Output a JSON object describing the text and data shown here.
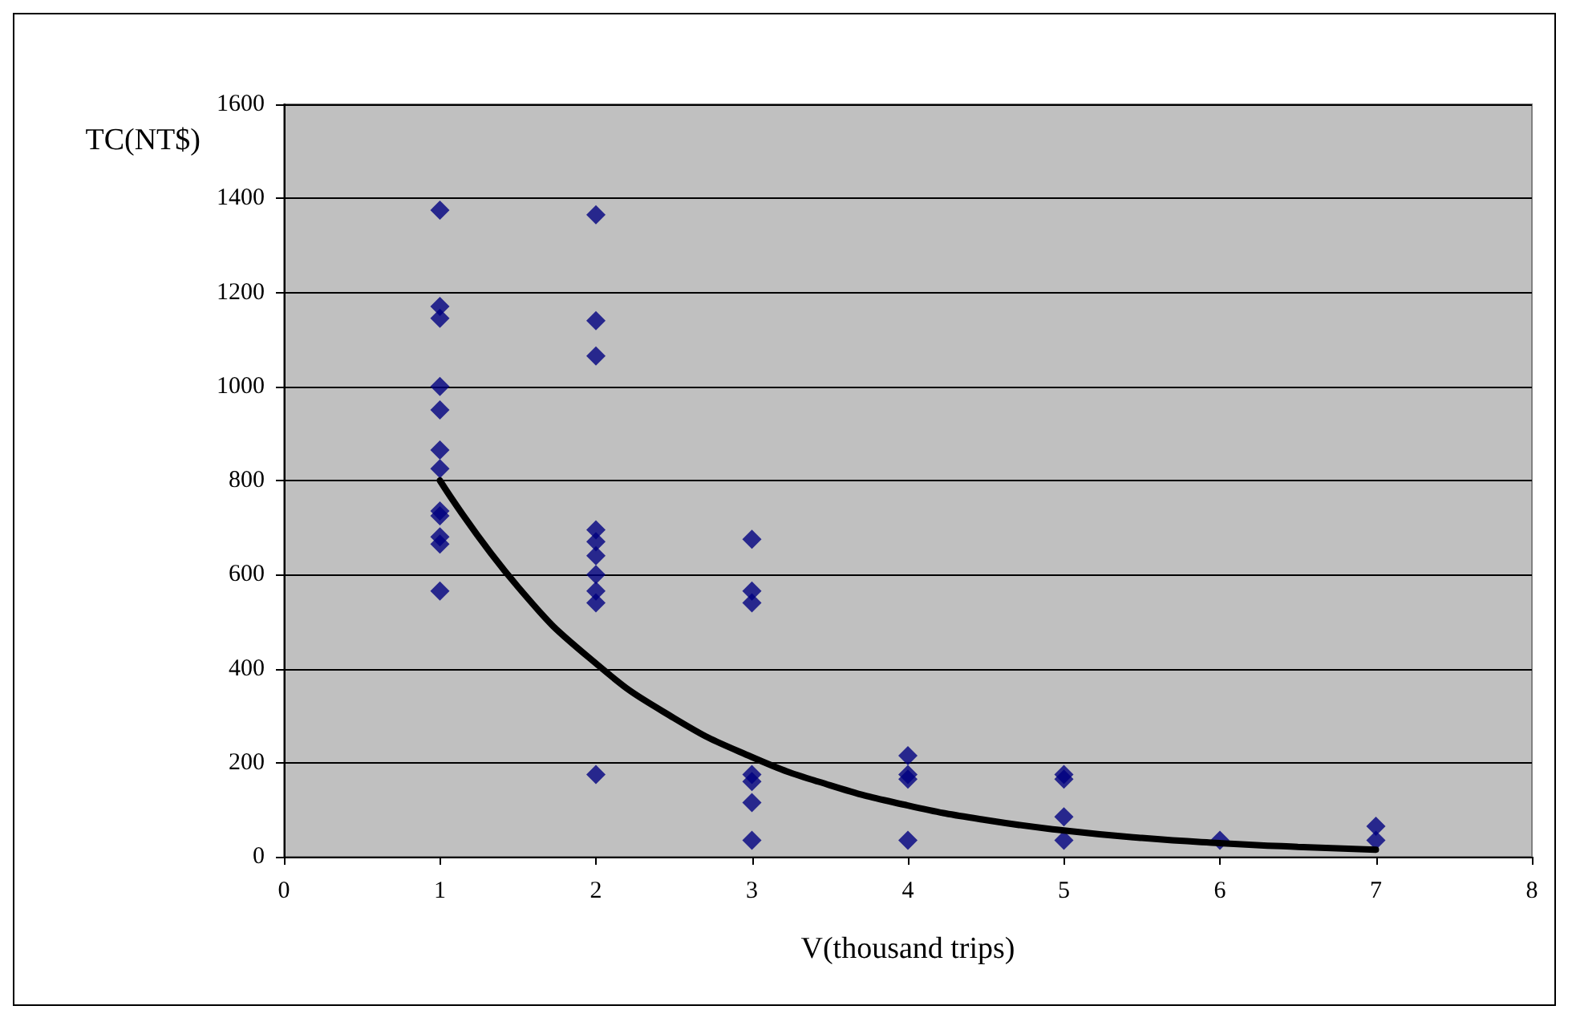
{
  "chart_data": {
    "type": "scatter",
    "xlabel": "V(thousand trips)",
    "ylabel": "TC(NT$)",
    "xlim": [
      0,
      8
    ],
    "xticks": [
      0,
      1,
      2,
      3,
      4,
      5,
      6,
      7,
      8
    ],
    "ylim": [
      0,
      1600
    ],
    "yticks": [
      0,
      200,
      400,
      600,
      800,
      1000,
      1200,
      1400,
      1600
    ],
    "grid": "y",
    "marker": "diamond",
    "series": [
      {
        "type": "scatter",
        "color": "#000080",
        "x": [
          1,
          1,
          1,
          1,
          1,
          1,
          1,
          1,
          1,
          1,
          1,
          1,
          2,
          2,
          2,
          2,
          2,
          2,
          2,
          2,
          2,
          2,
          3,
          3,
          3,
          3,
          3,
          3,
          3,
          4,
          4,
          4,
          4,
          5,
          5,
          5,
          5,
          6,
          7,
          7
        ],
        "values": [
          1375,
          1170,
          1145,
          1000,
          950,
          865,
          825,
          735,
          725,
          680,
          665,
          565,
          1365,
          1140,
          1065,
          695,
          670,
          640,
          600,
          565,
          540,
          175,
          675,
          565,
          540,
          175,
          160,
          115,
          35,
          215,
          175,
          165,
          35,
          175,
          165,
          85,
          35,
          35,
          65,
          35
        ]
      },
      {
        "type": "line",
        "color": "#000000",
        "marker": "none",
        "x": [
          1,
          1.5,
          2,
          2.5,
          3,
          3.5,
          4,
          4.5,
          5,
          5.5,
          6,
          6.5,
          7
        ],
        "values": [
          800,
          574,
          411,
          295,
          212,
          152,
          109,
          78,
          56,
          40,
          29,
          21,
          15
        ]
      }
    ]
  }
}
